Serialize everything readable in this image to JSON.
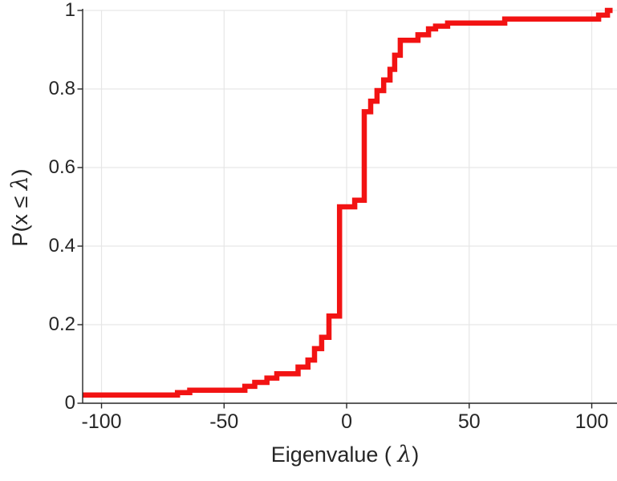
{
  "figure": {
    "kind": "matlab-style empirical CDF stairs plot",
    "background": "#ffffff",
    "line_color": "#f21313",
    "line_width": 6.5,
    "axis_color": "#262626",
    "grid_color": "#e6e6e6",
    "tick_label_color": "#262626"
  },
  "labels": {
    "xlabel": {
      "prefix": "Eigenvalue ( ",
      "symbol": "λ",
      "suffix": ")"
    },
    "ylabel": {
      "prefix": "P(x ≤ ",
      "symbol": "λ",
      "suffix": ")"
    }
  },
  "chart_data": {
    "type": "line",
    "subtype": "ecdf-stairs",
    "title": "",
    "xlabel": "Eigenvalue ( λ)",
    "ylabel": "P(x ≤ λ)",
    "xlim": [
      -107.7,
      110.3
    ],
    "ylim": [
      0,
      1
    ],
    "grid": true,
    "legend": null,
    "x_ticks": [
      -100,
      -50,
      0,
      50,
      100
    ],
    "x_tick_labels": [
      "-100",
      "-50",
      "0",
      "50",
      "100"
    ],
    "y_ticks": [
      0,
      0.2,
      0.4,
      0.6,
      0.8,
      1
    ],
    "y_tick_labels": [
      "0",
      "0.2",
      "0.4",
      "0.6",
      "0.8",
      "1"
    ],
    "steps_note": "Each pair is [eigenvalue, cumulative probability reached at that eigenvalue]; curve is drawn as a right-continuous staircase.",
    "steps": [
      [
        -107.7,
        0.021
      ],
      [
        -69.0,
        0.027
      ],
      [
        -64.0,
        0.033
      ],
      [
        -41.5,
        0.043
      ],
      [
        -37.5,
        0.053
      ],
      [
        -32.5,
        0.064
      ],
      [
        -28.5,
        0.075
      ],
      [
        -19.8,
        0.092
      ],
      [
        -15.8,
        0.11
      ],
      [
        -13.1,
        0.139
      ],
      [
        -10.2,
        0.168
      ],
      [
        -7.2,
        0.222
      ],
      [
        -2.9,
        0.5
      ],
      [
        3.3,
        0.517
      ],
      [
        7.2,
        0.742
      ],
      [
        9.8,
        0.769
      ],
      [
        12.4,
        0.796
      ],
      [
        15.1,
        0.823
      ],
      [
        17.7,
        0.85
      ],
      [
        19.6,
        0.886
      ],
      [
        21.9,
        0.924
      ],
      [
        29.1,
        0.938
      ],
      [
        33.4,
        0.953
      ],
      [
        36.3,
        0.96
      ],
      [
        41.2,
        0.968
      ],
      [
        64.5,
        0.978
      ],
      [
        102.8,
        0.988
      ],
      [
        106.4,
        1.0
      ],
      [
        108.5,
        1.0
      ]
    ]
  }
}
